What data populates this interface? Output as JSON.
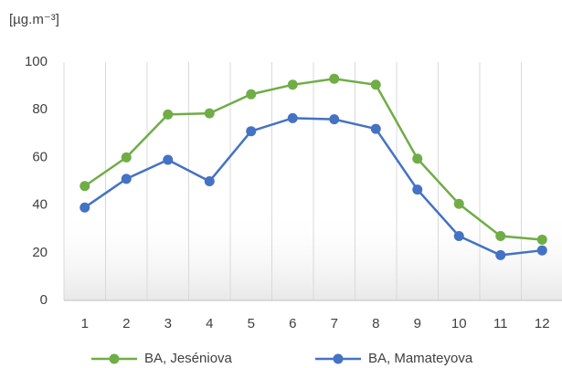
{
  "chart_data": {
    "type": "line",
    "y_unit_label": "[µg.m⁻³]",
    "categories": [
      "1",
      "2",
      "3",
      "4",
      "5",
      "6",
      "7",
      "8",
      "9",
      "10",
      "11",
      "12"
    ],
    "series": [
      {
        "name": "BA, Jeséniova",
        "color": "#70ad47",
        "values": [
          48,
          60,
          78,
          78.5,
          86.5,
          90.5,
          93,
          90.5,
          59.5,
          40.5,
          27,
          25.5
        ]
      },
      {
        "name": "BA, Mamateyova",
        "color": "#4472c4",
        "values": [
          39,
          51,
          59,
          50,
          71,
          76.5,
          76,
          72,
          46.5,
          27,
          19,
          21
        ]
      }
    ],
    "ylim": [
      0,
      100
    ],
    "yticks": [
      0,
      20,
      40,
      60,
      80,
      100
    ],
    "grid": "vertical",
    "legend": "bottom"
  }
}
